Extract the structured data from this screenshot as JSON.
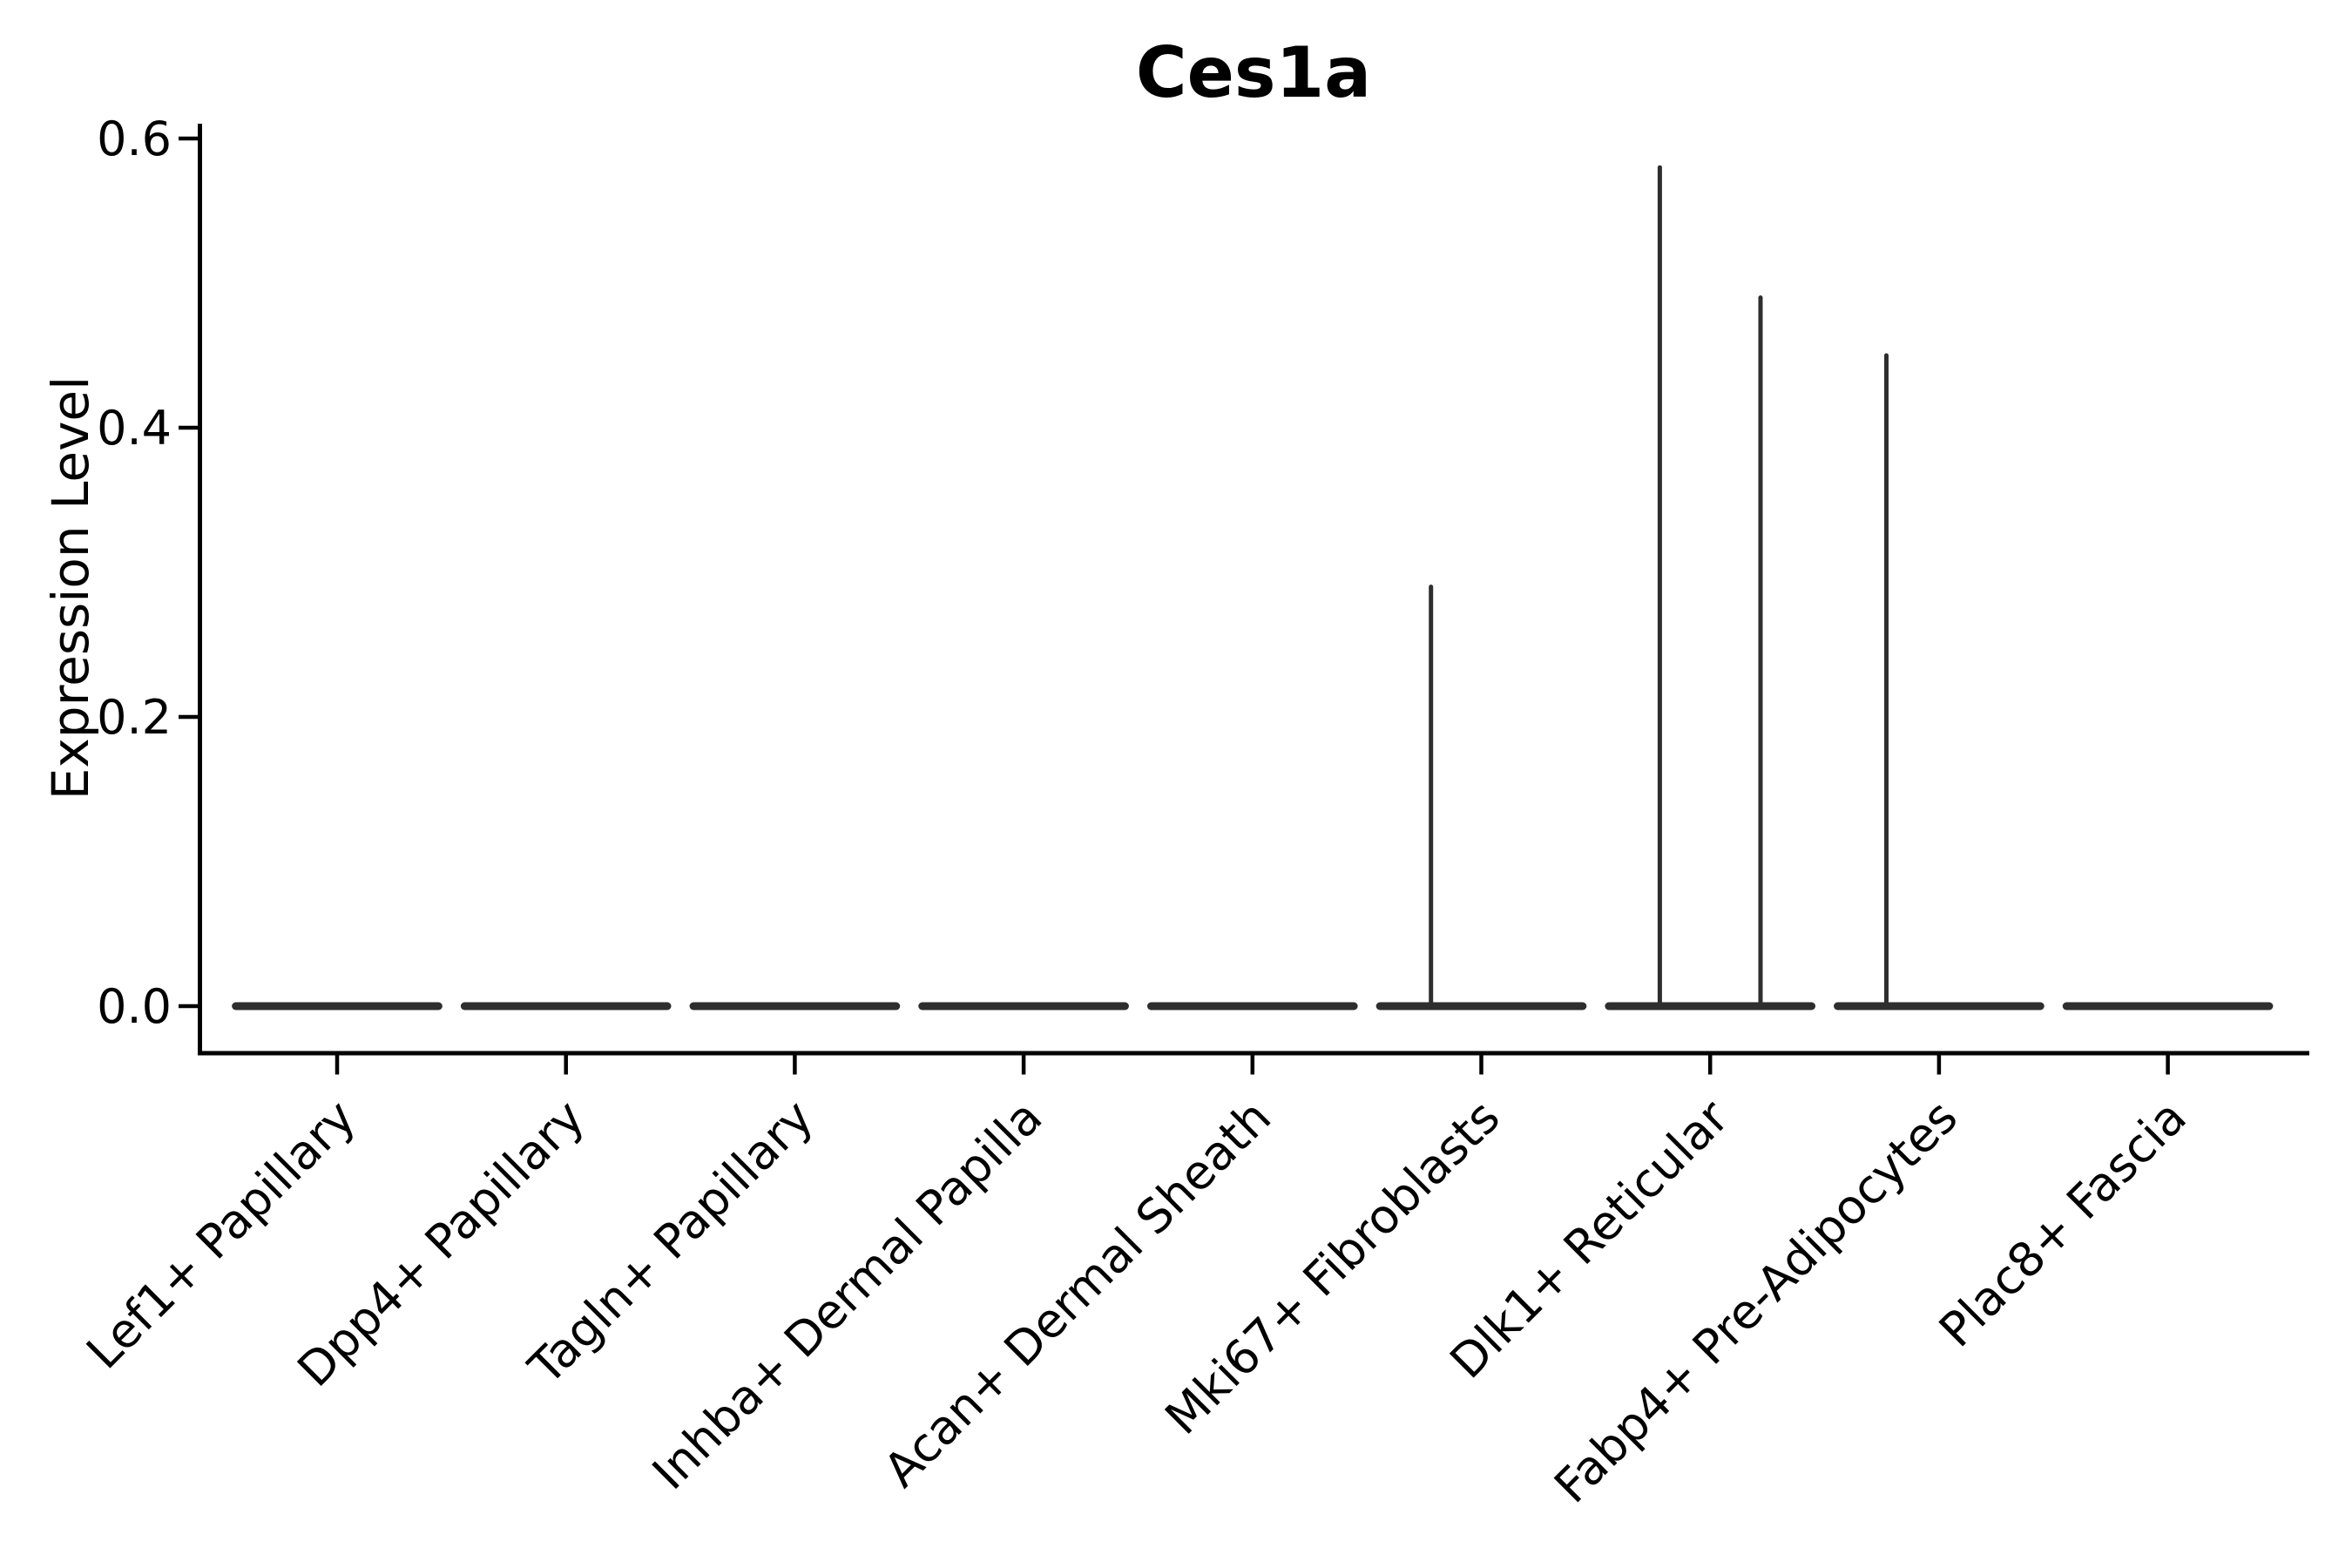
{
  "chart_data": {
    "type": "violin",
    "title": "Ces1a",
    "ylabel": "Expression Level",
    "xlabel": "",
    "ylim": [
      0,
      0.6
    ],
    "yticks": [
      {
        "value": 0.0,
        "label": "0.0"
      },
      {
        "value": 0.2,
        "label": "0.2"
      },
      {
        "value": 0.4,
        "label": "0.4"
      },
      {
        "value": 0.6,
        "label": "0.6"
      }
    ],
    "categories": [
      "Lef1+ Papillary",
      "Dpp4+ Papillary",
      "Tagln+ Papillary",
      "Inhba+ Dermal Papilla",
      "Acan+ Dermal Sheath",
      "Mki67+ Fibroblasts",
      "Dlk1+ Reticular",
      "Fabp4+ Pre-Adipocytes",
      "Plac8+ Fascia"
    ],
    "violins": [
      {
        "category": "Lef1+ Papillary",
        "baseline_value": 0,
        "spikes": []
      },
      {
        "category": "Dpp4+ Papillary",
        "baseline_value": 0,
        "spikes": []
      },
      {
        "category": "Tagln+ Papillary",
        "baseline_value": 0,
        "spikes": []
      },
      {
        "category": "Inhba+ Dermal Papilla",
        "baseline_value": 0,
        "spikes": []
      },
      {
        "category": "Acan+ Dermal Sheath",
        "baseline_value": 0,
        "spikes": []
      },
      {
        "category": "Mki67+ Fibroblasts",
        "baseline_value": 0,
        "spikes": [
          {
            "value": 0.29,
            "offset_frac": -0.22
          }
        ]
      },
      {
        "category": "Dlk1+ Reticular",
        "baseline_value": 0,
        "spikes": [
          {
            "value": 0.58,
            "offset_frac": -0.22
          },
          {
            "value": 0.49,
            "offset_frac": 0.22
          }
        ]
      },
      {
        "category": "Fabp4+ Pre-Adipocytes",
        "baseline_value": 0,
        "spikes": [
          {
            "value": 0.45,
            "offset_frac": -0.23
          }
        ]
      },
      {
        "category": "Plac8+ Fascia",
        "baseline_value": 0,
        "spikes": []
      }
    ],
    "style": {
      "violin_color": "#2e2e2e",
      "axis_color": "#000000",
      "text_color": "#000000",
      "background": "#ffffff",
      "violin_width_frac": 0.92
    },
    "grid": false,
    "legend": null,
    "x_tick_rotation_deg": 45
  }
}
